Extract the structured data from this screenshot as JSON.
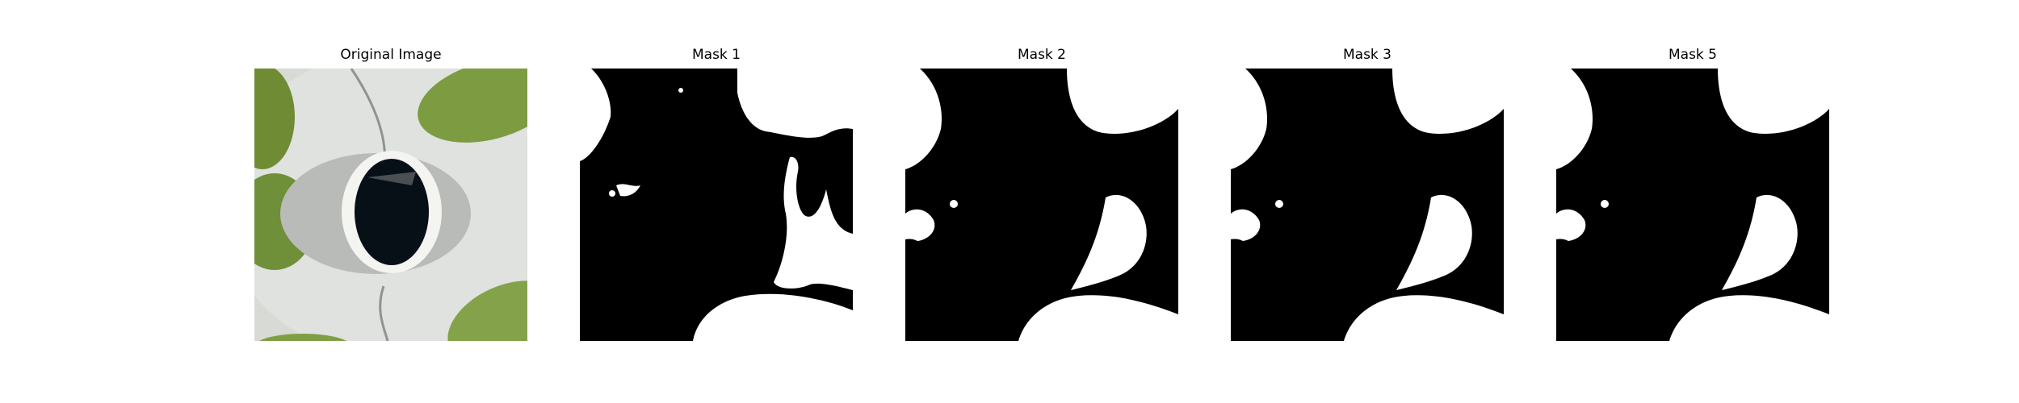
{
  "figure": {
    "panels": [
      {
        "title": "Original Image"
      },
      {
        "title": "Mask 1"
      },
      {
        "title": "Mask 2"
      },
      {
        "title": "Mask 3"
      },
      {
        "title": "Mask 5"
      }
    ]
  },
  "colors": {
    "mask_background": "#000000",
    "mask_foreground": "#ffffff",
    "surface": "#d9dcd8",
    "leaf": "#7c9a40",
    "cup_rim": "#f3f3f0",
    "cup_hole": "#06090d"
  }
}
